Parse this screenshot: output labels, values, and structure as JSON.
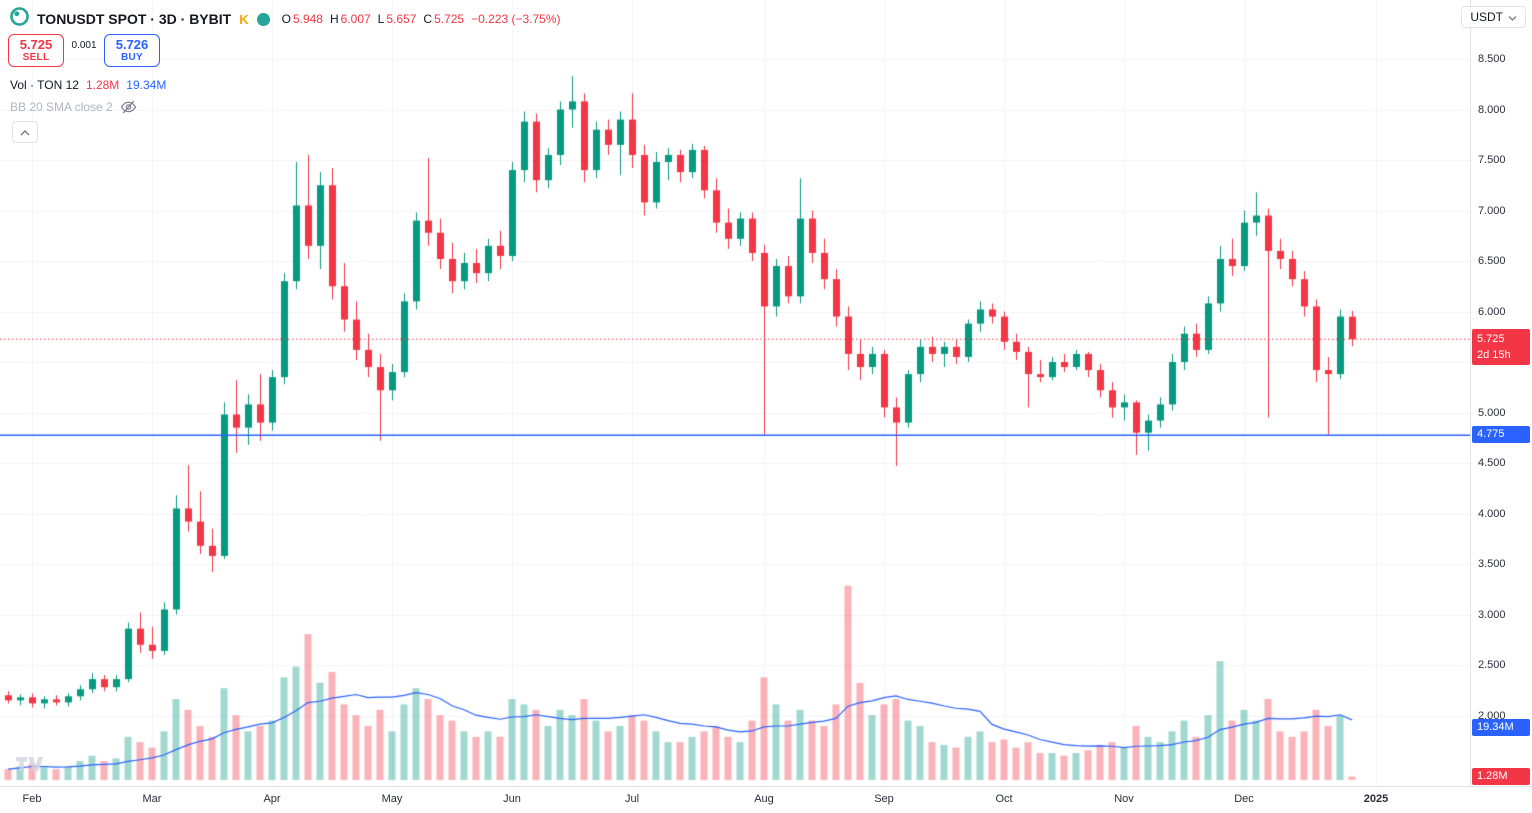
{
  "header": {
    "symbol_title": "TONUSDT SPOT · 3D · BYBIT",
    "exchange_badge": "K",
    "ohlc_fields": [
      {
        "label": "O",
        "value": "5.948"
      },
      {
        "label": "H",
        "value": "6.007"
      },
      {
        "label": "L",
        "value": "5.657"
      },
      {
        "label": "C",
        "value": "5.725"
      }
    ],
    "change": "−0.223 (−3.75%)"
  },
  "currency_button": {
    "label": "USDT"
  },
  "order_panel": {
    "sell_price": "5.725",
    "sell_label": "SELL",
    "spread": "0.001",
    "buy_price": "5.726",
    "buy_label": "BUY"
  },
  "indicators": [
    {
      "name": "Vol · TON 12",
      "value_volume": "1.28M",
      "value_ma": "19.34M",
      "enabled": true
    },
    {
      "name": "BB 20 SMA close 2",
      "enabled": false
    }
  ],
  "badges": {
    "last_price": {
      "price": "5.725",
      "countdown": "2d 15h"
    },
    "level": {
      "text": "4.775"
    },
    "volume_ma": {
      "text": "19.34M"
    },
    "volume": {
      "text": "1.28M"
    }
  },
  "price_axis": {
    "ticks": [
      "8.500",
      "8.000",
      "7.500",
      "7.000",
      "6.500",
      "6.000",
      "5.500",
      "5.000",
      "4.500",
      "4.000",
      "3.500",
      "3.000",
      "2.500",
      "2.000"
    ]
  },
  "time_axis": {
    "labels": [
      {
        "text": "Feb",
        "i": 2
      },
      {
        "text": "Mar",
        "i": 12
      },
      {
        "text": "Apr",
        "i": 22
      },
      {
        "text": "May",
        "i": 32
      },
      {
        "text": "Jun",
        "i": 42
      },
      {
        "text": "Jul",
        "i": 52
      },
      {
        "text": "Aug",
        "i": 63
      },
      {
        "text": "Sep",
        "i": 73
      },
      {
        "text": "Oct",
        "i": 83
      },
      {
        "text": "Nov",
        "i": 93
      },
      {
        "text": "Dec",
        "i": 103
      },
      {
        "text": "2025",
        "i": 114
      }
    ]
  },
  "colors": {
    "up": "#089981",
    "down": "#f23645",
    "vol_up": "rgba(8,153,129,0.38)",
    "vol_down": "rgba(242,54,69,0.38)",
    "accent_blue": "#2962ff",
    "grid": "#f0f3fa",
    "badge_red": "#f23645"
  },
  "chart_data": {
    "type": "candlestick",
    "symbol": "TONUSDT",
    "market": "SPOT",
    "interval": "3D",
    "exchange": "BYBIT",
    "last": {
      "open": 5.948,
      "high": 6.007,
      "low": 5.657,
      "close": 5.725,
      "change": -0.223,
      "change_pct": -3.75
    },
    "horizontal_line": 4.775,
    "volume_ma_period": 12,
    "price_axis_range": [
      2.0,
      8.5
    ],
    "candles_format": [
      "date",
      "open",
      "high",
      "low",
      "close",
      "volume_M"
    ],
    "candles": [
      [
        "2024-01-27",
        2.2,
        2.24,
        2.12,
        2.15,
        4
      ],
      [
        "2024-01-30",
        2.15,
        2.21,
        2.1,
        2.18,
        5
      ],
      [
        "2024-02-02",
        2.18,
        2.22,
        2.08,
        2.12,
        6
      ],
      [
        "2024-02-05",
        2.12,
        2.19,
        2.07,
        2.16,
        5
      ],
      [
        "2024-02-08",
        2.16,
        2.2,
        2.1,
        2.13,
        4
      ],
      [
        "2024-02-11",
        2.13,
        2.22,
        2.09,
        2.19,
        5
      ],
      [
        "2024-02-14",
        2.19,
        2.3,
        2.15,
        2.26,
        7
      ],
      [
        "2024-02-17",
        2.26,
        2.42,
        2.22,
        2.36,
        9
      ],
      [
        "2024-02-20",
        2.36,
        2.4,
        2.24,
        2.28,
        7
      ],
      [
        "2024-02-23",
        2.28,
        2.4,
        2.24,
        2.36,
        8
      ],
      [
        "2024-02-26",
        2.36,
        2.92,
        2.33,
        2.86,
        16
      ],
      [
        "2024-02-29",
        2.86,
        3.02,
        2.62,
        2.7,
        14
      ],
      [
        "2024-03-03",
        2.7,
        2.88,
        2.56,
        2.64,
        12
      ],
      [
        "2024-03-06",
        2.64,
        3.12,
        2.6,
        3.05,
        18
      ],
      [
        "2024-03-09",
        3.05,
        4.18,
        3.0,
        4.05,
        30
      ],
      [
        "2024-03-12",
        4.05,
        4.48,
        3.82,
        3.92,
        26
      ],
      [
        "2024-03-15",
        3.92,
        4.22,
        3.6,
        3.68,
        20
      ],
      [
        "2024-03-18",
        3.68,
        3.85,
        3.42,
        3.58,
        16
      ],
      [
        "2024-03-21",
        3.58,
        5.1,
        3.55,
        4.98,
        34
      ],
      [
        "2024-03-24",
        4.98,
        5.32,
        4.6,
        4.85,
        24
      ],
      [
        "2024-03-27",
        4.85,
        5.18,
        4.68,
        5.08,
        18
      ],
      [
        "2024-03-30",
        5.08,
        5.38,
        4.72,
        4.9,
        20
      ],
      [
        "2024-04-02",
        4.9,
        5.42,
        4.82,
        5.35,
        22
      ],
      [
        "2024-04-05",
        5.35,
        6.38,
        5.28,
        6.3,
        38
      ],
      [
        "2024-04-08",
        6.3,
        7.48,
        6.22,
        7.05,
        42
      ],
      [
        "2024-04-11",
        7.05,
        7.55,
        6.52,
        6.65,
        54
      ],
      [
        "2024-04-14",
        6.65,
        7.38,
        6.42,
        7.25,
        36
      ],
      [
        "2024-04-17",
        7.25,
        7.42,
        6.12,
        6.25,
        40
      ],
      [
        "2024-04-20",
        6.25,
        6.48,
        5.8,
        5.92,
        28
      ],
      [
        "2024-04-23",
        5.92,
        6.1,
        5.52,
        5.62,
        24
      ],
      [
        "2024-04-26",
        5.62,
        5.78,
        5.35,
        5.45,
        20
      ],
      [
        "2024-04-29",
        5.45,
        5.58,
        4.72,
        5.22,
        26
      ],
      [
        "2024-05-02",
        5.22,
        5.48,
        5.12,
        5.4,
        18
      ],
      [
        "2024-05-05",
        5.4,
        6.18,
        5.35,
        6.1,
        28
      ],
      [
        "2024-05-08",
        6.1,
        6.98,
        6.02,
        6.9,
        34
      ],
      [
        "2024-05-11",
        6.9,
        7.52,
        6.65,
        6.78,
        30
      ],
      [
        "2024-05-14",
        6.78,
        6.92,
        6.42,
        6.52,
        24
      ],
      [
        "2024-05-17",
        6.52,
        6.68,
        6.18,
        6.3,
        22
      ],
      [
        "2024-05-20",
        6.3,
        6.58,
        6.22,
        6.48,
        18
      ],
      [
        "2024-05-23",
        6.48,
        6.62,
        6.28,
        6.38,
        16
      ],
      [
        "2024-05-26",
        6.38,
        6.72,
        6.3,
        6.65,
        18
      ],
      [
        "2024-05-29",
        6.65,
        6.8,
        6.42,
        6.55,
        16
      ],
      [
        "2024-06-01",
        6.55,
        7.48,
        6.5,
        7.4,
        30
      ],
      [
        "2024-06-04",
        7.4,
        7.98,
        7.28,
        7.88,
        28
      ],
      [
        "2024-06-07",
        7.88,
        7.96,
        7.18,
        7.3,
        26
      ],
      [
        "2024-06-10",
        7.3,
        7.62,
        7.22,
        7.55,
        20
      ],
      [
        "2024-06-13",
        7.55,
        8.08,
        7.45,
        8.0,
        26
      ],
      [
        "2024-06-16",
        8.0,
        8.33,
        7.82,
        8.08,
        24
      ],
      [
        "2024-06-19",
        8.08,
        8.16,
        7.28,
        7.4,
        30
      ],
      [
        "2024-06-22",
        7.4,
        7.88,
        7.32,
        7.8,
        22
      ],
      [
        "2024-06-25",
        7.8,
        7.9,
        7.55,
        7.65,
        18
      ],
      [
        "2024-06-28",
        7.65,
        7.98,
        7.35,
        7.9,
        20
      ],
      [
        "2024-07-01",
        7.9,
        8.16,
        7.42,
        7.55,
        24
      ],
      [
        "2024-07-04",
        7.55,
        7.65,
        6.95,
        7.08,
        22
      ],
      [
        "2024-07-07",
        7.08,
        7.58,
        7.02,
        7.48,
        18
      ],
      [
        "2024-07-10",
        7.48,
        7.62,
        7.3,
        7.55,
        14
      ],
      [
        "2024-07-13",
        7.55,
        7.6,
        7.28,
        7.38,
        14
      ],
      [
        "2024-07-16",
        7.38,
        7.66,
        7.32,
        7.6,
        16
      ],
      [
        "2024-07-19",
        7.6,
        7.64,
        7.12,
        7.2,
        18
      ],
      [
        "2024-07-22",
        7.2,
        7.32,
        6.78,
        6.88,
        20
      ],
      [
        "2024-07-25",
        6.88,
        7.02,
        6.62,
        6.72,
        16
      ],
      [
        "2024-07-28",
        6.72,
        6.98,
        6.65,
        6.92,
        14
      ],
      [
        "2024-07-31",
        6.92,
        6.98,
        6.5,
        6.58,
        22
      ],
      [
        "2024-08-03",
        6.58,
        6.66,
        4.78,
        6.05,
        38
      ],
      [
        "2024-08-06",
        6.05,
        6.52,
        5.95,
        6.45,
        28
      ],
      [
        "2024-08-09",
        6.45,
        6.55,
        6.08,
        6.15,
        22
      ],
      [
        "2024-08-12",
        6.15,
        7.32,
        6.08,
        6.92,
        26
      ],
      [
        "2024-08-15",
        6.92,
        7.0,
        6.48,
        6.58,
        22
      ],
      [
        "2024-08-18",
        6.58,
        6.72,
        6.22,
        6.32,
        20
      ],
      [
        "2024-08-21",
        6.32,
        6.42,
        5.85,
        5.95,
        28
      ],
      [
        "2024-08-24",
        5.95,
        6.05,
        5.42,
        5.58,
        72
      ],
      [
        "2024-08-27",
        5.58,
        5.72,
        5.32,
        5.45,
        36
      ],
      [
        "2024-08-30",
        5.45,
        5.65,
        5.38,
        5.58,
        24
      ],
      [
        "2024-09-02",
        5.58,
        5.62,
        4.95,
        5.05,
        28
      ],
      [
        "2024-09-05",
        5.05,
        5.15,
        4.47,
        4.9,
        30
      ],
      [
        "2024-09-08",
        4.9,
        5.42,
        4.85,
        5.38,
        22
      ],
      [
        "2024-09-11",
        5.38,
        5.72,
        5.3,
        5.65,
        20
      ],
      [
        "2024-09-14",
        5.65,
        5.75,
        5.5,
        5.58,
        14
      ],
      [
        "2024-09-17",
        5.58,
        5.7,
        5.45,
        5.65,
        13
      ],
      [
        "2024-09-20",
        5.65,
        5.72,
        5.48,
        5.55,
        12
      ],
      [
        "2024-09-23",
        5.55,
        5.92,
        5.5,
        5.88,
        16
      ],
      [
        "2024-09-26",
        5.88,
        6.1,
        5.8,
        6.02,
        18
      ],
      [
        "2024-09-29",
        6.02,
        6.08,
        5.88,
        5.95,
        14
      ],
      [
        "2024-10-02",
        5.95,
        6.0,
        5.62,
        5.7,
        15
      ],
      [
        "2024-10-05",
        5.7,
        5.78,
        5.52,
        5.6,
        12
      ],
      [
        "2024-10-08",
        5.6,
        5.65,
        5.05,
        5.38,
        14
      ],
      [
        "2024-10-11",
        5.38,
        5.52,
        5.3,
        5.35,
        10
      ],
      [
        "2024-10-14",
        5.35,
        5.55,
        5.32,
        5.5,
        10
      ],
      [
        "2024-10-17",
        5.5,
        5.58,
        5.4,
        5.45,
        9
      ],
      [
        "2024-10-20",
        5.45,
        5.62,
        5.42,
        5.58,
        10
      ],
      [
        "2024-10-23",
        5.58,
        5.6,
        5.35,
        5.42,
        11
      ],
      [
        "2024-10-26",
        5.42,
        5.48,
        5.15,
        5.22,
        13
      ],
      [
        "2024-10-29",
        5.22,
        5.3,
        4.95,
        5.05,
        14
      ],
      [
        "2024-11-01",
        5.05,
        5.18,
        4.92,
        5.1,
        12
      ],
      [
        "2024-11-04",
        5.1,
        5.12,
        4.58,
        4.8,
        20
      ],
      [
        "2024-11-07",
        4.8,
        4.98,
        4.62,
        4.92,
        16
      ],
      [
        "2024-11-10",
        4.92,
        5.15,
        4.85,
        5.08,
        14
      ],
      [
        "2024-11-13",
        5.08,
        5.58,
        5.02,
        5.5,
        18
      ],
      [
        "2024-11-16",
        5.5,
        5.85,
        5.42,
        5.78,
        22
      ],
      [
        "2024-11-19",
        5.78,
        5.88,
        5.55,
        5.62,
        16
      ],
      [
        "2024-11-22",
        5.62,
        6.15,
        5.58,
        6.08,
        24
      ],
      [
        "2024-11-25",
        6.08,
        6.65,
        6.0,
        6.52,
        44
      ],
      [
        "2024-11-28",
        6.52,
        6.72,
        6.35,
        6.45,
        22
      ],
      [
        "2024-12-01",
        6.45,
        7.0,
        6.4,
        6.88,
        26
      ],
      [
        "2024-12-04",
        6.88,
        7.18,
        6.75,
        6.95,
        22
      ],
      [
        "2024-12-07",
        6.95,
        7.02,
        4.95,
        6.6,
        30
      ],
      [
        "2024-12-10",
        6.6,
        6.72,
        6.42,
        6.52,
        18
      ],
      [
        "2024-12-13",
        6.52,
        6.6,
        6.25,
        6.32,
        16
      ],
      [
        "2024-12-16",
        6.32,
        6.4,
        5.95,
        6.05,
        18
      ],
      [
        "2024-12-19",
        6.05,
        6.12,
        5.3,
        5.42,
        26
      ],
      [
        "2024-12-22",
        5.42,
        5.55,
        4.77,
        5.38,
        20
      ],
      [
        "2024-12-25",
        5.38,
        6.02,
        5.33,
        5.95,
        24
      ],
      [
        "2024-12-28",
        5.948,
        6.007,
        5.657,
        5.725,
        1.28
      ]
    ]
  }
}
